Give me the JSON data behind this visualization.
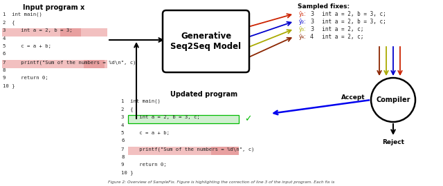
{
  "bg_color": "#ffffff",
  "input_title": "Input program x",
  "updated_title": "Updated program",
  "sampled_title": "Sampled fixes:",
  "model_label": "Generative\nSeq2Seq Model",
  "compiler_label": "Compiler",
  "accept_label": "Accept",
  "reject_label": "Reject",
  "input_code": [
    "1  int main()",
    "2  {",
    "3     int a = 2, b = 3;",
    "4",
    "5     c = a + b;",
    "6",
    "7     printf(\"Sum of the numbers = %d\\n\", c)",
    "8",
    "9     return 0;",
    "10 }"
  ],
  "updated_code": [
    "1  int main()",
    "2  {",
    "3     int a = 2, b = 3, c;",
    "4",
    "5     c = a + b;",
    "6",
    "7     printf(\"Sum of the numbers = %d\\n\", c)",
    "8",
    "9     return 0;",
    "10 }"
  ],
  "sampled_fixes": [
    {
      "label": "ŷ₁:",
      "num": "3",
      "text": "  int a = 2, b = 3, c;",
      "color": "#cc2200"
    },
    {
      "label": "ŷ₂:",
      "num": "3",
      "text": "  int a = 2, b = 3, c;",
      "color": "#0000cc"
    },
    {
      "label": "ŷ₃:",
      "num": "3",
      "text": "  int a = 2, c;",
      "color": "#aaaa00"
    },
    {
      "label": "ŷ₄:",
      "num": "4",
      "text": "  int a = 2, c;",
      "color": "#8B2500"
    }
  ],
  "fix_colors": [
    "#cc2200",
    "#0000cc",
    "#aaaa00",
    "#8B2500"
  ],
  "arrow_accept_color": "#0000ee",
  "arrow_reject_color": "#000000",
  "arrow_main_color": "#000000",
  "input_highlight_red": "#f2c0c0",
  "input_highlight_red2": "#e8a0a0",
  "updated_highlight_green": "#d0f0d0",
  "updated_border_green": "#00bb00",
  "checkmark_color": "#00bb00",
  "caption": "Figure 2: Overview of SampleFix. Figure is highlighting the correction of line 3 of the input program. Each fix is"
}
